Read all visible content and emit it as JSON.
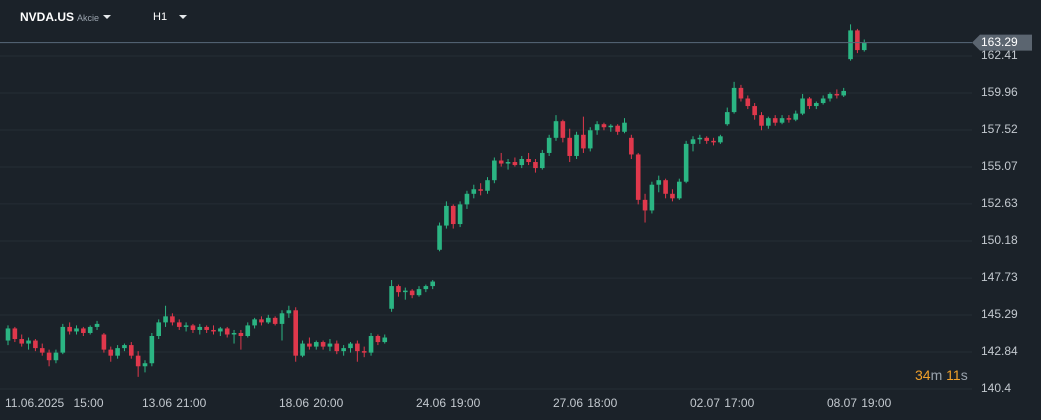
{
  "header": {
    "symbol": "NVDA.US",
    "asset_class": "Akcie",
    "timeframe": "H1"
  },
  "timer": {
    "minutes": 34,
    "minutes_unit": "m",
    "seconds": 11,
    "seconds_unit": "s"
  },
  "chart_data": {
    "type": "candlestick",
    "up_color": "#2bb583",
    "down_color": "#e0384c",
    "ylim": [
      139.67,
      166.11
    ],
    "yticks": [
      140.4,
      142.84,
      145.29,
      147.73,
      150.18,
      152.63,
      155.07,
      157.52,
      159.96,
      162.41
    ],
    "grid": true,
    "categories": [
      "11.06.2025",
      null,
      null,
      null,
      null,
      null,
      null,
      null,
      null,
      null,
      "15:00",
      null,
      null,
      null,
      null,
      null,
      null,
      null,
      null,
      null,
      "13.06",
      null,
      null,
      null,
      null,
      "21:00",
      null,
      null,
      null,
      null,
      null,
      null,
      null,
      null,
      null,
      null,
      null,
      null,
      null,
      null,
      "18.06",
      null,
      null,
      null,
      null,
      "20:00",
      null,
      null,
      null,
      null,
      null,
      null,
      null,
      null,
      null,
      null,
      null,
      null,
      null,
      null,
      "24.06",
      null,
      null,
      null,
      null,
      "19:00",
      null,
      null,
      null,
      null,
      null,
      null,
      null,
      null,
      null,
      null,
      null,
      null,
      null,
      null,
      "27.06",
      null,
      null,
      null,
      null,
      "18:00",
      null,
      null,
      null,
      null,
      null,
      null,
      null,
      null,
      null,
      null,
      null,
      null,
      null,
      null,
      "02.07",
      null,
      null,
      null,
      null,
      "17:00",
      null,
      null,
      null,
      null,
      null,
      null,
      null,
      null,
      null,
      null,
      null,
      null,
      null,
      null,
      "08.07",
      null,
      null,
      null,
      null,
      "19:00"
    ],
    "open": [
      143.6,
      144.4,
      143.7,
      143.4,
      143.6,
      143.1,
      142.8,
      142.3,
      142.8,
      144.5,
      144.2,
      144.4,
      144.1,
      144.5,
      144.0,
      143.0,
      142.6,
      143.1,
      143.3,
      142.6,
      141.9,
      142.1,
      143.9,
      144.8,
      145.2,
      144.8,
      144.5,
      144.6,
      144.3,
      144.5,
      144.3,
      144.2,
      144.4,
      144.0,
      144.1,
      143.9,
      144.6,
      145.0,
      144.8,
      145.1,
      144.7,
      145.4,
      145.6,
      142.6,
      143.4,
      143.2,
      143.5,
      143.2,
      143.4,
      142.9,
      143.1,
      143.4,
      142.9,
      142.8,
      143.9,
      143.5,
      145.7,
      147.2,
      146.8,
      146.9,
      146.6,
      147.0,
      147.2,
      149.6,
      151.2,
      152.5,
      151.3,
      152.6,
      153.3,
      153.6,
      153.5,
      154.2,
      155.5,
      155.3,
      155.4,
      155.2,
      155.6,
      155.4,
      155.0,
      156.0,
      157.0,
      158.1,
      157.0,
      155.8,
      157.2,
      156.3,
      157.5,
      157.9,
      157.7,
      157.8,
      157.4,
      157.0,
      155.9,
      152.9,
      152.2,
      153.9,
      154.2,
      153.3,
      153.0,
      154.1,
      156.6,
      156.9,
      157.0,
      156.8,
      156.7,
      157.9,
      158.7,
      160.3,
      159.6,
      159.1,
      158.5,
      157.8,
      158.3,
      158.0,
      158.3,
      158.2,
      158.6,
      159.6,
      159.1,
      159.3,
      159.6,
      159.9,
      159.8,
      162.2,
      164.1,
      162.8
    ],
    "high": [
      144.6,
      144.5,
      144.0,
      143.8,
      143.7,
      143.4,
      143.0,
      143.0,
      144.7,
      144.8,
      144.6,
      144.5,
      144.6,
      144.9,
      144.1,
      143.2,
      143.3,
      143.4,
      143.5,
      142.9,
      142.3,
      144.1,
      145.0,
      145.9,
      145.4,
      145.0,
      144.8,
      144.7,
      144.7,
      144.6,
      144.6,
      144.5,
      144.5,
      144.3,
      144.3,
      144.8,
      145.1,
      145.2,
      145.3,
      145.2,
      145.6,
      145.9,
      145.8,
      143.6,
      143.8,
      143.6,
      143.6,
      143.7,
      143.6,
      143.3,
      143.5,
      143.6,
      143.2,
      144.1,
      144.0,
      144.0,
      147.6,
      147.3,
      147.1,
      147.0,
      147.2,
      147.3,
      147.6,
      151.4,
      152.8,
      152.6,
      152.8,
      153.5,
      153.9,
      154.0,
      154.4,
      155.7,
      156.0,
      155.6,
      155.7,
      155.8,
      156.0,
      155.6,
      156.2,
      157.2,
      158.5,
      158.2,
      157.6,
      157.4,
      158.4,
      157.7,
      158.1,
      158.0,
      157.9,
      157.9,
      158.3,
      157.2,
      156.0,
      153.3,
      154.1,
      154.5,
      154.3,
      153.6,
      154.3,
      156.8,
      157.1,
      157.2,
      157.1,
      157.0,
      157.2,
      159.0,
      160.7,
      160.5,
      159.8,
      159.3,
      158.7,
      158.4,
      158.5,
      158.5,
      158.5,
      158.8,
      159.9,
      159.7,
      159.4,
      159.8,
      160.0,
      160.2,
      160.3,
      164.5,
      164.2,
      163.5
    ],
    "low": [
      143.3,
      143.5,
      143.2,
      143.0,
      142.9,
      142.6,
      141.9,
      142.1,
      142.7,
      144.0,
      144.0,
      143.9,
      144.0,
      144.3,
      142.8,
      142.2,
      142.4,
      142.9,
      142.4,
      141.2,
      141.5,
      141.9,
      143.7,
      144.5,
      144.6,
      144.3,
      144.2,
      144.1,
      144.0,
      144.1,
      144.0,
      143.9,
      143.8,
      143.4,
      143.0,
      143.8,
      144.4,
      144.6,
      144.7,
      144.6,
      143.6,
      145.1,
      142.2,
      142.5,
      143.0,
      143.0,
      143.0,
      142.9,
      142.7,
      142.6,
      142.8,
      142.2,
      142.5,
      142.6,
      143.3,
      143.4,
      145.5,
      146.5,
      146.3,
      146.4,
      146.5,
      146.8,
      147.0,
      149.5,
      151.0,
      151.0,
      151.1,
      152.3,
      153.0,
      153.2,
      153.3,
      154.0,
      155.1,
      154.9,
      155.1,
      155.0,
      155.2,
      154.7,
      154.9,
      155.8,
      156.8,
      156.7,
      155.4,
      155.6,
      156.0,
      156.1,
      157.2,
      157.5,
      157.4,
      157.2,
      157.3,
      155.6,
      152.6,
      151.4,
      152.0,
      153.4,
      153.0,
      152.8,
      152.9,
      154.0,
      156.1,
      156.6,
      156.6,
      156.5,
      156.6,
      157.8,
      158.6,
      159.4,
      158.9,
      158.2,
      157.5,
      157.6,
      157.8,
      157.9,
      158.0,
      158.1,
      158.5,
      158.9,
      158.9,
      159.2,
      159.4,
      159.6,
      159.7,
      162.1,
      162.6,
      162.7
    ],
    "close": [
      144.4,
      143.7,
      143.4,
      143.6,
      143.1,
      142.8,
      142.3,
      142.8,
      144.5,
      144.2,
      144.4,
      144.1,
      144.5,
      144.7,
      143.0,
      142.6,
      143.1,
      143.3,
      142.6,
      141.9,
      142.1,
      143.9,
      144.8,
      145.2,
      144.8,
      144.5,
      144.6,
      144.3,
      144.5,
      144.3,
      144.2,
      144.4,
      144.0,
      144.1,
      143.9,
      144.6,
      145.0,
      144.8,
      145.1,
      144.7,
      145.4,
      145.6,
      142.6,
      143.4,
      143.2,
      143.5,
      143.2,
      143.4,
      142.9,
      143.1,
      143.4,
      142.9,
      142.8,
      143.9,
      143.5,
      143.8,
      147.2,
      146.8,
      146.9,
      146.6,
      147.0,
      147.2,
      147.5,
      151.2,
      152.5,
      151.3,
      152.6,
      153.3,
      153.6,
      153.5,
      154.2,
      155.5,
      155.3,
      155.4,
      155.2,
      155.6,
      155.4,
      155.0,
      156.0,
      157.0,
      158.1,
      157.0,
      155.8,
      157.2,
      156.3,
      157.5,
      157.9,
      157.7,
      157.8,
      157.4,
      158.0,
      155.9,
      152.9,
      152.2,
      153.9,
      154.2,
      153.3,
      153.0,
      154.1,
      156.6,
      156.9,
      157.0,
      156.8,
      156.7,
      157.1,
      158.7,
      160.3,
      159.6,
      159.1,
      158.5,
      157.8,
      158.3,
      158.0,
      158.3,
      158.2,
      158.6,
      159.6,
      159.1,
      159.3,
      159.6,
      159.9,
      159.8,
      160.1,
      164.1,
      162.8,
      163.29
    ]
  }
}
